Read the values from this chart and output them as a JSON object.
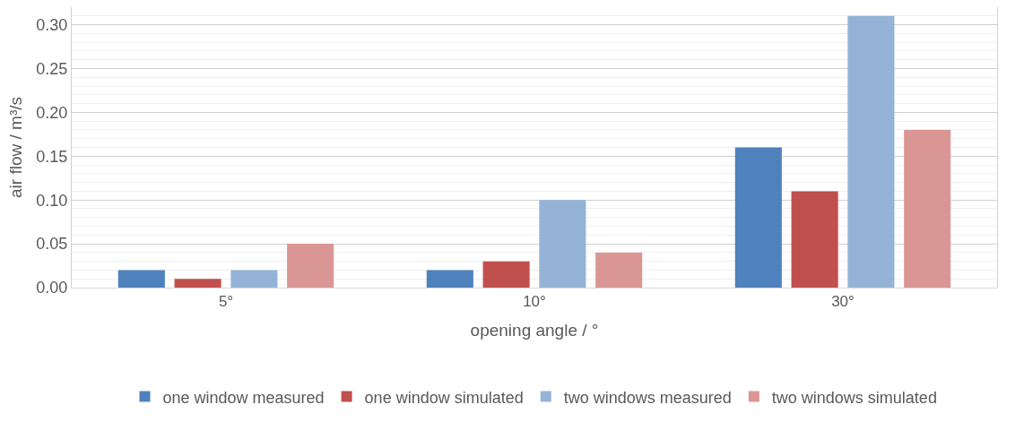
{
  "chart_data": {
    "type": "bar",
    "xlabel": "opening angle / °",
    "ylabel": "air flow / m³/s",
    "categories": [
      "5°",
      "10°",
      "30°"
    ],
    "series": [
      {
        "name": "one window measured",
        "color": "#4f81bd",
        "values": [
          0.02,
          0.02,
          0.16
        ]
      },
      {
        "name": "one window simulated",
        "color": "#c0504d",
        "values": [
          0.01,
          0.03,
          0.11
        ]
      },
      {
        "name": "two windows measured",
        "color": "#95b3d7",
        "values": [
          0.02,
          0.1,
          0.31
        ]
      },
      {
        "name": "two windows simulated",
        "color": "#da9694",
        "values": [
          0.05,
          0.04,
          0.18
        ]
      }
    ],
    "ylim": [
      0,
      0.32
    ],
    "yticks": [
      {
        "value": 0,
        "label": "0.00"
      },
      {
        "value": 0.05,
        "label": "0.05"
      },
      {
        "value": 0.1,
        "label": "0.10"
      },
      {
        "value": 0.15,
        "label": "0.15"
      },
      {
        "value": 0.2,
        "label": "0.20"
      },
      {
        "value": 0.25,
        "label": "0.25"
      },
      {
        "value": 0.3,
        "label": "0.30"
      }
    ],
    "grid": "y",
    "legend": "bottom"
  }
}
